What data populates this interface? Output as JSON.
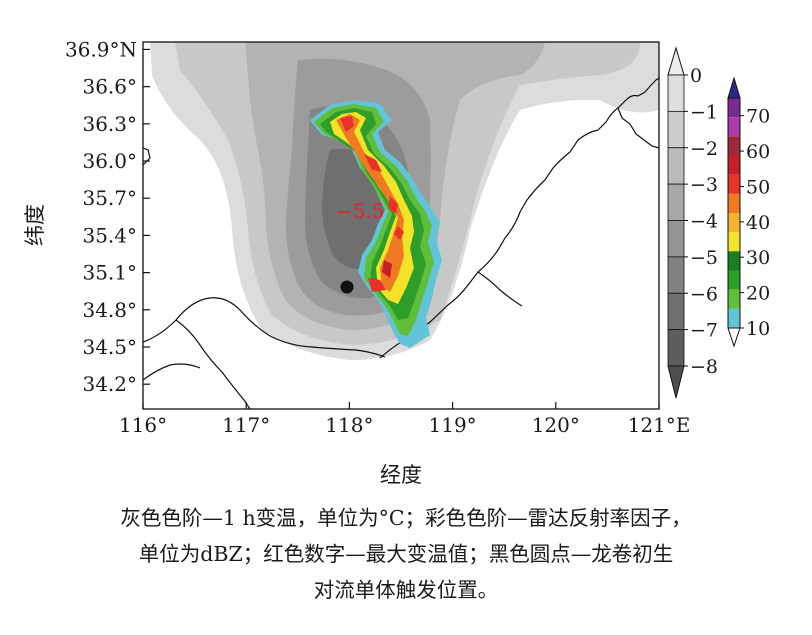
{
  "chart_data": {
    "type": "heatmap",
    "xlabel": "经度",
    "ylabel": "纬度",
    "xlim": [
      116,
      121
    ],
    "ylim": [
      34.0,
      36.96
    ],
    "x_ticks": [
      {
        "value": 116,
        "label": "116°"
      },
      {
        "value": 117,
        "label": "117°"
      },
      {
        "value": 118,
        "label": "118°"
      },
      {
        "value": 119,
        "label": "119°"
      },
      {
        "value": 120,
        "label": "120°"
      },
      {
        "value": 121,
        "label": "121°E"
      }
    ],
    "y_ticks": [
      {
        "value": 34.2,
        "label": "34.2°"
      },
      {
        "value": 34.5,
        "label": "34.5°"
      },
      {
        "value": 34.8,
        "label": "34.8°"
      },
      {
        "value": 35.1,
        "label": "35.1°"
      },
      {
        "value": 35.4,
        "label": "35.4°"
      },
      {
        "value": 35.7,
        "label": "35.7°"
      },
      {
        "value": 36.0,
        "label": "36.0°"
      },
      {
        "value": 36.3,
        "label": "36.3°"
      },
      {
        "value": 36.6,
        "label": "36.6°"
      },
      {
        "value": 36.9,
        "label": "36.9°N"
      }
    ],
    "temperature_colorbar": {
      "levels": [
        0,
        -1,
        -2,
        -3,
        -4,
        -5,
        -6,
        -7,
        -8
      ],
      "labels": [
        "0",
        "−1",
        "−2",
        "−3",
        "−4",
        "−5",
        "−6",
        "−7",
        "−8"
      ],
      "colors": [
        "#ececec",
        "#dedede",
        "#cdcdcd",
        "#bbbbbb",
        "#a8a8a8",
        "#959595",
        "#828282",
        "#707070",
        "#5d5d5d",
        "#4e4e4e"
      ]
    },
    "radar_colorbar": {
      "levels": [
        10,
        20,
        30,
        40,
        50,
        60,
        70
      ],
      "labels": [
        "10",
        "20",
        "30",
        "40",
        "50",
        "60",
        "70"
      ],
      "colors": [
        "#62c4d8",
        "#5fbf3a",
        "#2e9e2a",
        "#1a7e22",
        "#f2e228",
        "#f5b22e",
        "#f07a22",
        "#e8322a",
        "#c81e28",
        "#9c2a3a",
        "#b03aa8",
        "#7a2a90",
        "#2a2a8a"
      ]
    },
    "annotations": [
      {
        "text": "−5.5",
        "lon": 118.0,
        "lat": 35.6
      }
    ],
    "markers": [
      {
        "type": "tornado-initiation",
        "lon": 118.0,
        "lat": 34.98
      }
    ]
  },
  "caption": {
    "line1": "灰色色阶—1 h变温，单位为°C；彩色色阶—雷达反射率因子，",
    "line2": "单位为dBZ；红色数字—最大变温值；黑色圆点—龙卷初生",
    "line3": "对流单体触发位置。"
  }
}
